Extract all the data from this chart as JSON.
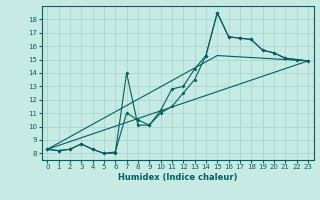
{
  "title": "",
  "xlabel": "Humidex (Indice chaleur)",
  "xlim": [
    -0.5,
    23.5
  ],
  "ylim": [
    7.5,
    19.0
  ],
  "xticks": [
    0,
    1,
    2,
    3,
    4,
    5,
    6,
    7,
    8,
    9,
    10,
    11,
    12,
    13,
    14,
    15,
    16,
    17,
    18,
    19,
    20,
    21,
    22,
    23
  ],
  "yticks": [
    8,
    9,
    10,
    11,
    12,
    13,
    14,
    15,
    16,
    17,
    18
  ],
  "bg_color": "#c8eae4",
  "line_color": "#006060",
  "grid_color": "#a0d4cc",
  "line1_x": [
    0,
    1,
    2,
    3,
    4,
    5,
    6,
    7,
    8,
    9,
    10,
    11,
    12,
    13,
    14,
    15,
    16,
    17,
    18,
    19,
    20,
    21,
    22,
    23
  ],
  "line1_y": [
    8.3,
    8.2,
    8.3,
    8.7,
    8.3,
    8.0,
    8.0,
    14.0,
    10.1,
    10.1,
    11.2,
    12.8,
    13.0,
    14.3,
    15.3,
    18.5,
    16.7,
    16.6,
    16.5,
    15.7,
    15.5,
    15.1,
    15.0,
    14.9
  ],
  "line2_x": [
    0,
    1,
    2,
    3,
    4,
    5,
    6,
    7,
    8,
    9,
    10,
    11,
    12,
    13,
    14,
    15,
    16,
    17,
    18,
    19,
    20,
    21,
    22,
    23
  ],
  "line2_y": [
    8.3,
    8.2,
    8.3,
    8.7,
    8.3,
    8.0,
    8.1,
    11.0,
    10.5,
    10.1,
    11.0,
    11.5,
    12.5,
    13.5,
    15.3,
    18.5,
    16.7,
    16.6,
    16.5,
    15.7,
    15.5,
    15.1,
    15.0,
    14.9
  ],
  "line3_x": [
    0,
    23
  ],
  "line3_y": [
    8.3,
    14.9
  ],
  "line4_x": [
    0,
    15,
    23
  ],
  "line4_y": [
    8.3,
    15.3,
    14.9
  ],
  "xlabel_fontsize": 6,
  "tick_fontsize": 5
}
